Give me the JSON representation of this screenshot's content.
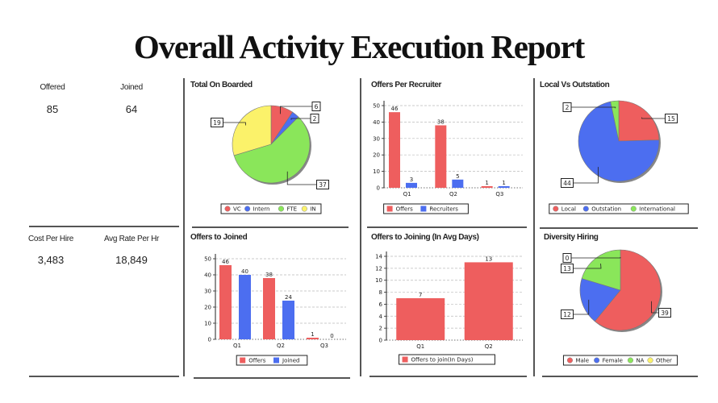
{
  "page": {
    "title": "Overall Activity Execution Report"
  },
  "kpis": [
    {
      "label": "Offered",
      "value": "85"
    },
    {
      "label": "Joined",
      "value": "64"
    },
    {
      "label": "Cost Per Hire",
      "value": "3,483"
    },
    {
      "label": "Avg Rate Per Hr",
      "value": "18,849"
    }
  ],
  "colors": {
    "red": "#ee5e5e",
    "blue": "#4c6ef0",
    "green": "#8ae65a",
    "yellow": "#fbf26a"
  },
  "chart_data": [
    {
      "type": "pie",
      "title": "Total On Boarded",
      "labels": [
        "VC",
        "Intern",
        "FTE",
        "IN"
      ],
      "values": [
        6,
        2,
        37,
        19
      ],
      "colors": [
        "#ee5e5e",
        "#4c6ef0",
        "#8ae65a",
        "#fbf26a"
      ],
      "legend": "bottom"
    },
    {
      "type": "bar",
      "title": "Offers Per Recruiter",
      "categories": [
        "Q1",
        "Q2",
        "Q3"
      ],
      "series": [
        {
          "name": "Offers",
          "values": [
            46,
            38,
            1
          ],
          "color": "#ee5e5e"
        },
        {
          "name": "Recruiters",
          "values": [
            3,
            5,
            1
          ],
          "color": "#4c6ef0"
        }
      ],
      "ylim": [
        0,
        50
      ],
      "yticks": [
        0,
        10,
        20,
        30,
        40,
        50
      ],
      "grid": true,
      "legend": "bottom"
    },
    {
      "type": "pie",
      "title": "Local Vs Outstation",
      "labels": [
        "Local",
        "Outstation",
        "International"
      ],
      "values": [
        15,
        44,
        2
      ],
      "colors": [
        "#ee5e5e",
        "#4c6ef0",
        "#8ae65a"
      ],
      "legend": "bottom"
    },
    {
      "type": "bar",
      "title": "Offers to Joined",
      "categories": [
        "Q1",
        "Q2",
        "Q3"
      ],
      "series": [
        {
          "name": "Offers",
          "values": [
            46,
            38,
            1
          ],
          "color": "#ee5e5e"
        },
        {
          "name": "Joined",
          "values": [
            40,
            24,
            0
          ],
          "color": "#4c6ef0"
        }
      ],
      "ylim": [
        0,
        50
      ],
      "yticks": [
        0,
        10,
        20,
        30,
        40,
        50
      ],
      "grid": true,
      "legend": "bottom"
    },
    {
      "type": "bar",
      "title": "Offers to Joining (In Avg Days)",
      "categories": [
        "Q1",
        "Q2"
      ],
      "series": [
        {
          "name": "Offers to join(In Days)",
          "values": [
            7,
            13
          ],
          "color": "#ee5e5e"
        }
      ],
      "ylim": [
        0,
        14
      ],
      "yticks": [
        0,
        2,
        4,
        6,
        8,
        10,
        12,
        14
      ],
      "grid": true,
      "legend": "bottom"
    },
    {
      "type": "pie",
      "title": "Diversity Hiring",
      "labels": [
        "Male",
        "Female",
        "NA",
        "Other"
      ],
      "values": [
        39,
        12,
        13,
        0
      ],
      "colors": [
        "#ee5e5e",
        "#4c6ef0",
        "#8ae65a",
        "#fbf26a"
      ],
      "legend": "bottom"
    }
  ]
}
